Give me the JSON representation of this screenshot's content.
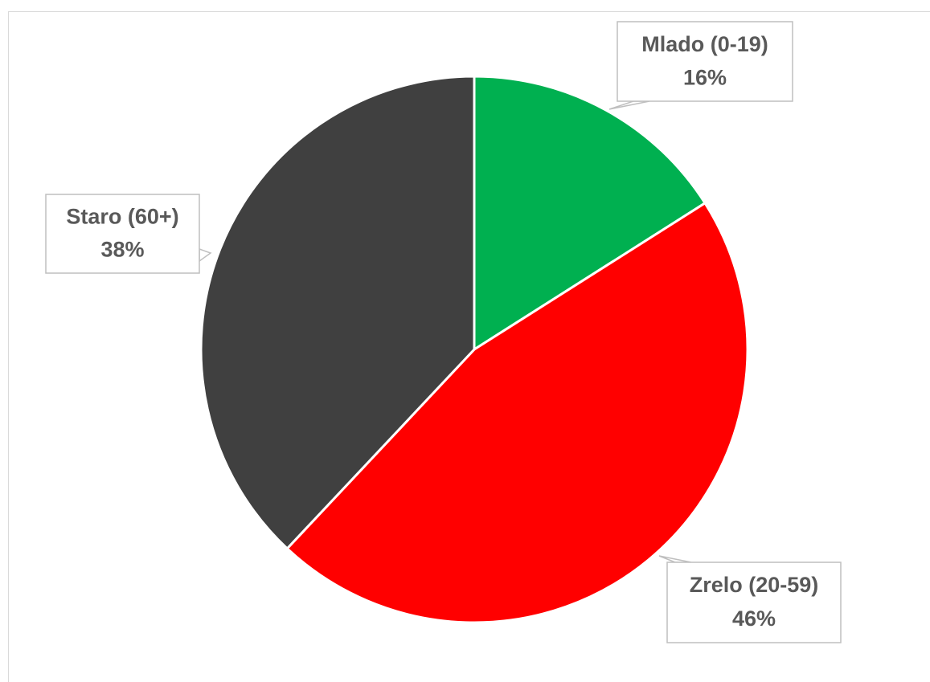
{
  "chart_data": {
    "type": "pie",
    "categories": [
      "Mlado (0-19)",
      "Zrelo (20-59)",
      "Staro (60+)"
    ],
    "values": [
      16,
      46,
      38
    ],
    "value_labels": [
      "16%",
      "46%",
      "38%"
    ],
    "colors": [
      "#00b050",
      "#ff0000",
      "#404040"
    ]
  }
}
